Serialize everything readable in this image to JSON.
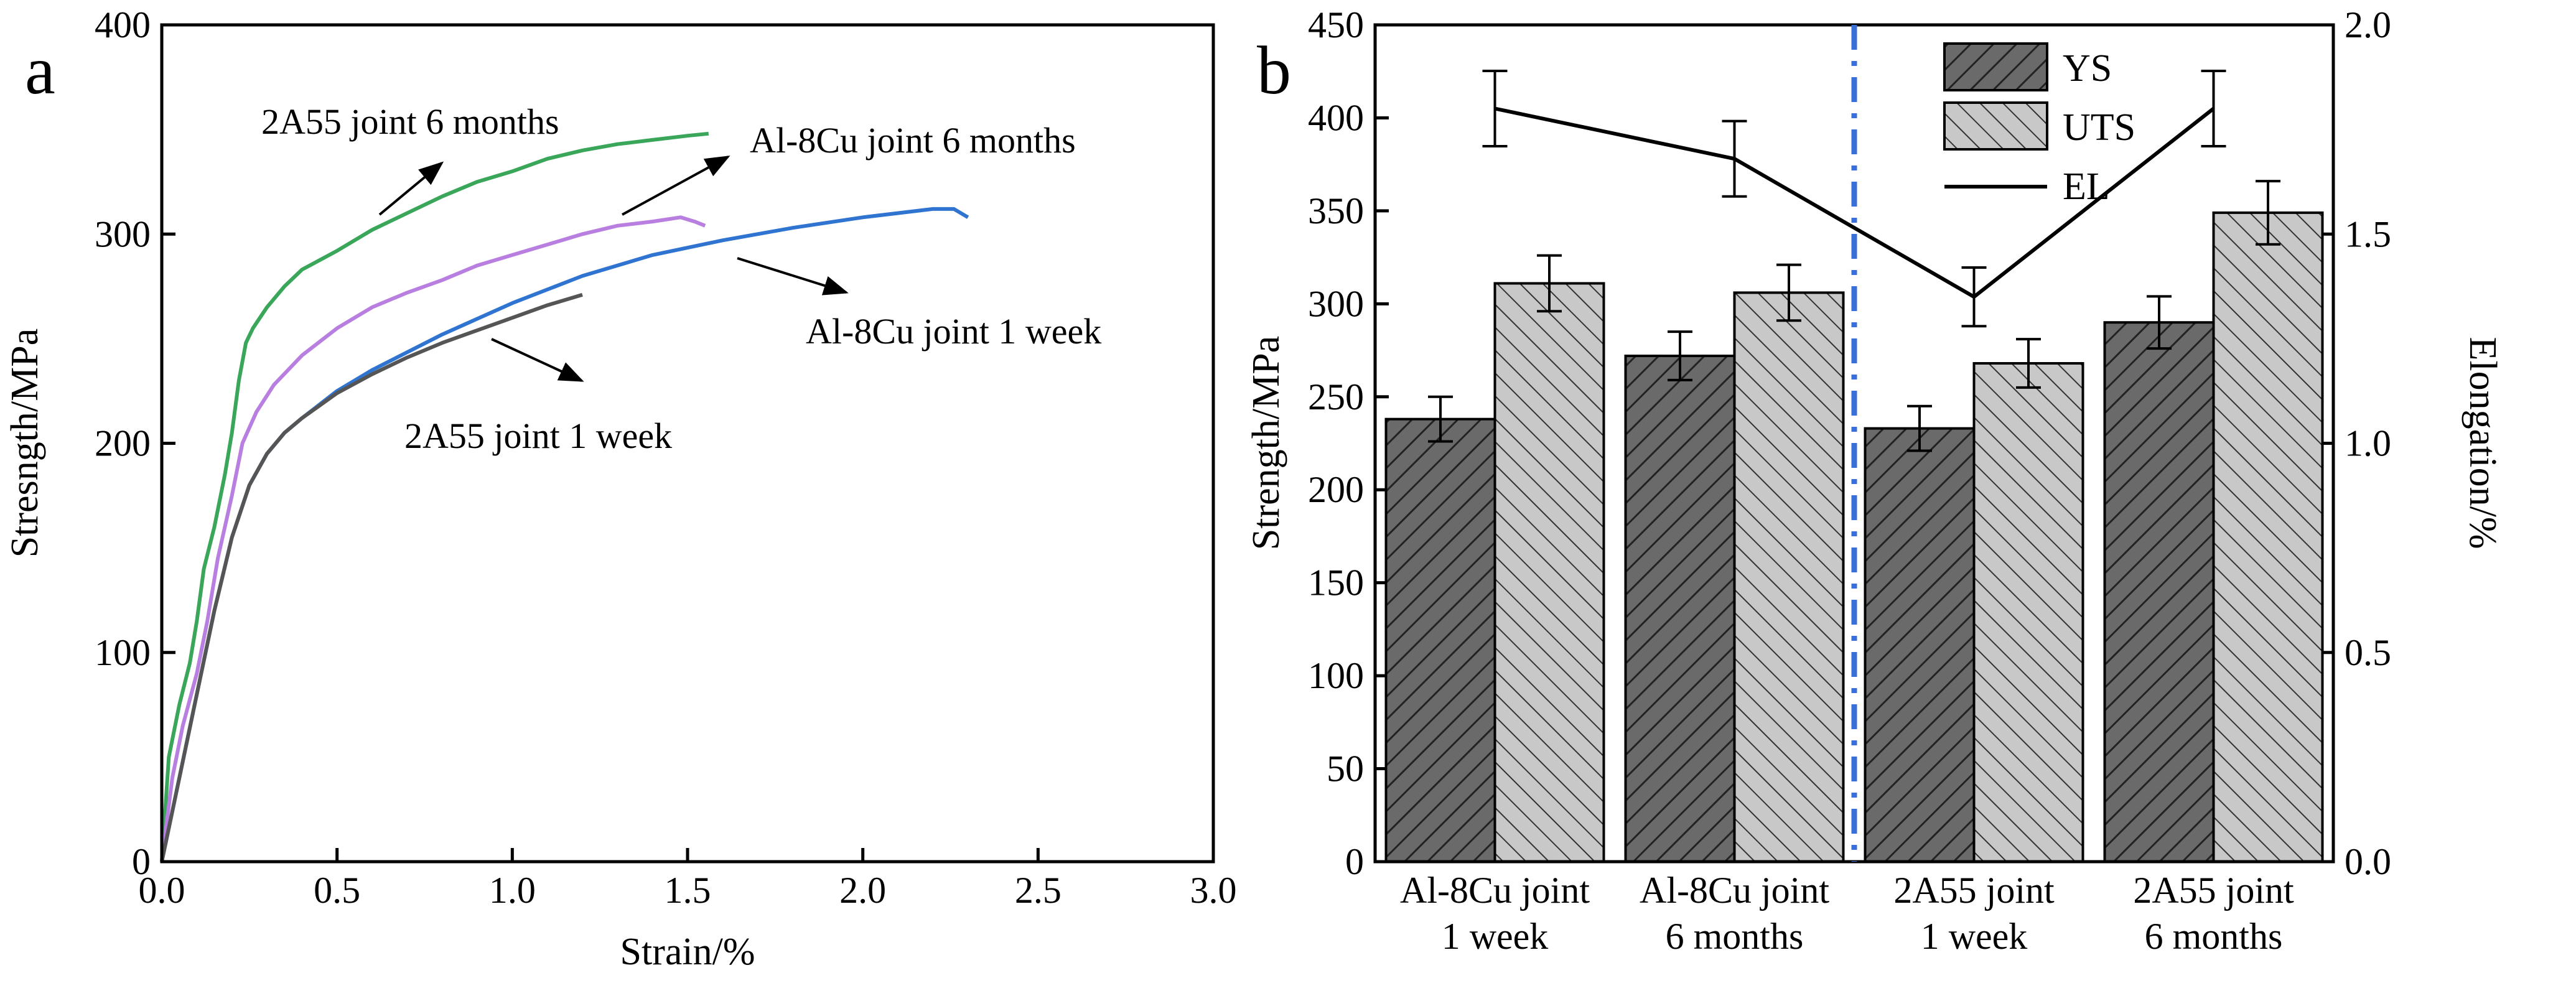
{
  "panel_a": {
    "label": "a",
    "chart_data": {
      "type": "line",
      "title": "",
      "xlabel": "Strain/%",
      "ylabel": "Stresngth/MPa",
      "xlim": [
        0,
        3.0
      ],
      "ylim": [
        0,
        400
      ],
      "xticks": [
        "0.0",
        "0.5",
        "1.0",
        "1.5",
        "2.0",
        "2.5",
        "3.0"
      ],
      "yticks": [
        "0",
        "100",
        "200",
        "300",
        "400"
      ],
      "series": [
        {
          "name": "2A55 joint 6 months",
          "color": "#3aa65a",
          "x": [
            0,
            0.02,
            0.05,
            0.08,
            0.1,
            0.12,
            0.15,
            0.18,
            0.2,
            0.22,
            0.24,
            0.26,
            0.3,
            0.35,
            0.4,
            0.5,
            0.6,
            0.7,
            0.8,
            0.9,
            1.0,
            1.1,
            1.2,
            1.3,
            1.4,
            1.5,
            1.56
          ],
          "y": [
            0,
            50,
            75,
            95,
            115,
            140,
            160,
            185,
            205,
            230,
            248,
            255,
            265,
            275,
            283,
            292,
            302,
            310,
            318,
            325,
            330,
            336,
            340,
            343,
            345,
            347,
            348
          ]
        },
        {
          "name": "Al-8Cu joint 6 months",
          "color": "#b97fe0",
          "x": [
            0,
            0.03,
            0.06,
            0.1,
            0.13,
            0.16,
            0.2,
            0.23,
            0.27,
            0.32,
            0.4,
            0.5,
            0.6,
            0.7,
            0.8,
            0.9,
            1.0,
            1.1,
            1.2,
            1.3,
            1.4,
            1.48,
            1.52,
            1.55
          ],
          "y": [
            0,
            40,
            65,
            90,
            115,
            145,
            175,
            200,
            215,
            228,
            242,
            255,
            265,
            272,
            278,
            285,
            290,
            295,
            300,
            304,
            306,
            308,
            306,
            304
          ]
        },
        {
          "name": "Al-8Cu joint 1 week",
          "color": "#2f74d0",
          "x": [
            0,
            0.05,
            0.1,
            0.15,
            0.2,
            0.25,
            0.3,
            0.35,
            0.4,
            0.5,
            0.6,
            0.8,
            1.0,
            1.2,
            1.4,
            1.6,
            1.8,
            2.0,
            2.2,
            2.26,
            2.3
          ],
          "y": [
            0,
            40,
            80,
            120,
            155,
            180,
            195,
            205,
            212,
            225,
            235,
            252,
            267,
            280,
            290,
            297,
            303,
            308,
            312,
            312,
            308
          ]
        },
        {
          "name": "2A55 joint 1 week",
          "color": "#555555",
          "x": [
            0,
            0.05,
            0.1,
            0.15,
            0.2,
            0.25,
            0.3,
            0.35,
            0.4,
            0.5,
            0.6,
            0.7,
            0.8,
            0.9,
            1.0,
            1.1,
            1.2
          ],
          "y": [
            0,
            40,
            80,
            120,
            155,
            180,
            195,
            205,
            212,
            224,
            233,
            241,
            248,
            254,
            260,
            266,
            271
          ]
        }
      ],
      "annotations": [
        "2A55 joint 6 months",
        "Al-8Cu joint 6 months",
        "Al-8Cu joint 1 week",
        "2A55 joint 1 week"
      ]
    }
  },
  "panel_b": {
    "label": "b",
    "chart_data": {
      "type": "bar",
      "title": "",
      "xlabel": "",
      "ylabel": "Strength/MPa",
      "y2label": "Elongation/%",
      "ylim": [
        0,
        450
      ],
      "y2lim": [
        0.0,
        2.0
      ],
      "yticks": [
        "0",
        "50",
        "100",
        "150",
        "200",
        "250",
        "300",
        "350",
        "400",
        "450"
      ],
      "y2ticks": [
        "0.0",
        "0.5",
        "1.0",
        "1.5",
        "2.0"
      ],
      "categories": [
        {
          "line1": "Al-8Cu joint",
          "line2": "1 week"
        },
        {
          "line1": "Al-8Cu joint",
          "line2": "6 months"
        },
        {
          "line1": "2A55 joint",
          "line2": "1 week"
        },
        {
          "line1": "2A55 joint",
          "line2": "6 months"
        }
      ],
      "series": [
        {
          "name": "YS",
          "values": [
            238,
            272,
            233,
            290
          ],
          "errors": [
            12,
            13,
            12,
            14
          ],
          "color": "#6a6a6a"
        },
        {
          "name": "UTS",
          "values": [
            311,
            306,
            268,
            349
          ],
          "errors": [
            15,
            15,
            13,
            17
          ],
          "color": "#c8c8c8"
        },
        {
          "name": "EL",
          "axis": "right",
          "values": [
            1.8,
            1.68,
            1.35,
            1.8
          ],
          "errors": [
            0.09,
            0.09,
            0.07,
            0.09
          ],
          "color": "#000000"
        }
      ],
      "legend": [
        "YS",
        "UTS",
        "EL"
      ],
      "legend_position": "top-right"
    }
  }
}
